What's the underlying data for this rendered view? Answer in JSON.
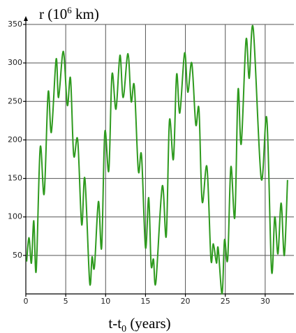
{
  "chart_data": {
    "type": "line",
    "ylabel": {
      "text": "r (10",
      "sup": "6",
      "after": " km)"
    },
    "xlabel": {
      "text": "t-t",
      "sub": "0",
      "after": " (years)"
    },
    "xlim": [
      0,
      33.6
    ],
    "ylim": [
      0,
      350
    ],
    "xticks": [
      0,
      5,
      10,
      15,
      20,
      25,
      30
    ],
    "yticks": [
      50,
      100,
      150,
      200,
      250,
      300,
      350
    ],
    "grid": true,
    "series": [
      {
        "name": "r",
        "color": "#2e9a1e",
        "x": [
          0.1,
          0.4,
          0.7,
          1.0,
          1.3,
          1.8,
          2.3,
          2.8,
          3.2,
          3.8,
          4.1,
          4.7,
          5.2,
          5.6,
          6.0,
          6.5,
          7.0,
          7.4,
          8.0,
          8.3,
          8.6,
          9.1,
          9.5,
          9.9,
          10.4,
          10.8,
          11.3,
          11.8,
          12.2,
          12.8,
          13.2,
          13.6,
          14.1,
          14.5,
          15.0,
          15.4,
          15.7,
          16.0,
          16.3,
          17.1,
          17.6,
          18.0,
          18.5,
          18.9,
          19.3,
          19.9,
          20.3,
          20.8,
          21.3,
          21.7,
          22.1,
          22.7,
          23.2,
          23.5,
          23.9,
          24.1,
          24.6,
          24.9,
          25.3,
          25.7,
          26.2,
          26.6,
          27.0,
          27.6,
          28.0,
          28.5,
          29.5,
          30.2,
          30.8,
          31.2,
          31.6,
          32.0,
          32.4,
          32.8
        ],
        "values": [
          42,
          73,
          40,
          95,
          30,
          190,
          130,
          262,
          210,
          305,
          255,
          315,
          245,
          280,
          180,
          200,
          90,
          150,
          15,
          48,
          35,
          120,
          60,
          210,
          160,
          285,
          240,
          310,
          255,
          312,
          250,
          270,
          160,
          180,
          60,
          125,
          38,
          45,
          15,
          140,
          75,
          225,
          175,
          285,
          235,
          313,
          262,
          300,
          220,
          240,
          120,
          165,
          45,
          65,
          40,
          60,
          0,
          70,
          45,
          165,
          100,
          265,
          195,
          330,
          280,
          345,
          150,
          228,
          30,
          100,
          52,
          118,
          50,
          148
        ]
      }
    ]
  }
}
